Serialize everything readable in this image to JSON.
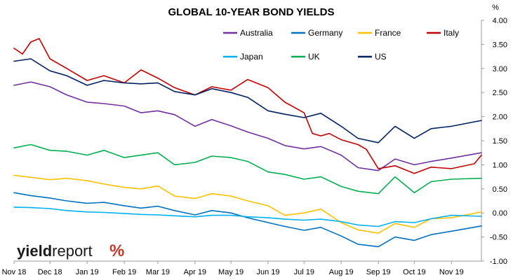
{
  "chart_data": {
    "type": "line",
    "title": "GLOBAL 10-YEAR BOND YIELDS",
    "unit": "%",
    "ylim": [
      -1.0,
      4.0
    ],
    "yticks": [
      -1.0,
      -0.5,
      0.0,
      0.5,
      1.0,
      1.5,
      2.0,
      2.5,
      3.0,
      3.5,
      4.0
    ],
    "ytick_labels": [
      "-1.00",
      "-0.50",
      "0.00",
      "0.50",
      "1.00",
      "1.50",
      "2.00",
      "2.50",
      "3.00",
      "3.50",
      "4.00"
    ],
    "xlim": [
      "2018-11-01",
      "2019-11-26"
    ],
    "xticks": [
      "2018-11-01",
      "2018-12-01",
      "2019-01-01",
      "2019-02-01",
      "2019-03-01",
      "2019-04-01",
      "2019-05-01",
      "2019-06-01",
      "2019-07-01",
      "2019-08-01",
      "2019-09-01",
      "2019-10-01",
      "2019-11-01"
    ],
    "xtick_labels": [
      "Nov 18",
      "Dec 18",
      "Jan 19",
      "Feb 19",
      "Mar 19",
      "Apr 19",
      "May 19",
      "Jun 19",
      "Jul 19",
      "Aug 19",
      "Sep 19",
      "Oct 19",
      "Nov 19"
    ],
    "grid": false,
    "legend": "top",
    "series": [
      {
        "name": "Australia",
        "color": "#7030a0",
        "points": [
          [
            "2018-11-01",
            2.65
          ],
          [
            "2018-11-15",
            2.72
          ],
          [
            "2018-12-01",
            2.62
          ],
          [
            "2018-12-15",
            2.45
          ],
          [
            "2019-01-01",
            2.3
          ],
          [
            "2019-01-15",
            2.27
          ],
          [
            "2019-02-01",
            2.22
          ],
          [
            "2019-02-15",
            2.08
          ],
          [
            "2019-03-01",
            2.12
          ],
          [
            "2019-03-15",
            2.04
          ],
          [
            "2019-04-01",
            1.8
          ],
          [
            "2019-04-15",
            1.94
          ],
          [
            "2019-05-01",
            1.81
          ],
          [
            "2019-05-15",
            1.68
          ],
          [
            "2019-06-01",
            1.55
          ],
          [
            "2019-06-15",
            1.4
          ],
          [
            "2019-07-01",
            1.33
          ],
          [
            "2019-07-15",
            1.38
          ],
          [
            "2019-08-01",
            1.2
          ],
          [
            "2019-08-15",
            0.94
          ],
          [
            "2019-09-01",
            0.88
          ],
          [
            "2019-09-15",
            1.12
          ],
          [
            "2019-10-01",
            1.0
          ],
          [
            "2019-10-15",
            1.07
          ],
          [
            "2019-11-01",
            1.14
          ],
          [
            "2019-11-26",
            1.25
          ]
        ]
      },
      {
        "name": "Germany",
        "color": "#0070c0",
        "points": [
          [
            "2018-11-01",
            0.42
          ],
          [
            "2018-11-15",
            0.36
          ],
          [
            "2018-12-01",
            0.31
          ],
          [
            "2018-12-15",
            0.25
          ],
          [
            "2019-01-01",
            0.2
          ],
          [
            "2019-01-15",
            0.22
          ],
          [
            "2019-02-01",
            0.15
          ],
          [
            "2019-02-15",
            0.1
          ],
          [
            "2019-03-01",
            0.14
          ],
          [
            "2019-03-15",
            0.05
          ],
          [
            "2019-04-01",
            -0.04
          ],
          [
            "2019-04-15",
            0.05
          ],
          [
            "2019-05-01",
            0.0
          ],
          [
            "2019-05-15",
            -0.1
          ],
          [
            "2019-06-01",
            -0.2
          ],
          [
            "2019-06-15",
            -0.28
          ],
          [
            "2019-07-01",
            -0.36
          ],
          [
            "2019-07-15",
            -0.3
          ],
          [
            "2019-08-01",
            -0.48
          ],
          [
            "2019-08-15",
            -0.65
          ],
          [
            "2019-09-01",
            -0.7
          ],
          [
            "2019-09-15",
            -0.5
          ],
          [
            "2019-10-01",
            -0.57
          ],
          [
            "2019-10-15",
            -0.45
          ],
          [
            "2019-11-01",
            -0.38
          ],
          [
            "2019-11-26",
            -0.27
          ]
        ]
      },
      {
        "name": "France",
        "color": "#ffc000",
        "points": [
          [
            "2018-11-01",
            0.78
          ],
          [
            "2018-11-15",
            0.74
          ],
          [
            "2018-12-01",
            0.69
          ],
          [
            "2018-12-15",
            0.72
          ],
          [
            "2019-01-01",
            0.67
          ],
          [
            "2019-01-15",
            0.6
          ],
          [
            "2019-02-01",
            0.53
          ],
          [
            "2019-02-15",
            0.5
          ],
          [
            "2019-03-01",
            0.56
          ],
          [
            "2019-03-15",
            0.35
          ],
          [
            "2019-04-01",
            0.3
          ],
          [
            "2019-04-15",
            0.4
          ],
          [
            "2019-05-01",
            0.35
          ],
          [
            "2019-05-15",
            0.25
          ],
          [
            "2019-06-01",
            0.15
          ],
          [
            "2019-06-15",
            -0.05
          ],
          [
            "2019-07-01",
            0.0
          ],
          [
            "2019-07-15",
            0.08
          ],
          [
            "2019-08-01",
            -0.2
          ],
          [
            "2019-08-15",
            -0.35
          ],
          [
            "2019-09-01",
            -0.42
          ],
          [
            "2019-09-15",
            -0.22
          ],
          [
            "2019-10-01",
            -0.3
          ],
          [
            "2019-10-15",
            -0.12
          ],
          [
            "2019-11-01",
            -0.1
          ],
          [
            "2019-11-26",
            0.02
          ]
        ]
      },
      {
        "name": "Italy",
        "color": "#c00000",
        "points": [
          [
            "2018-11-01",
            3.42
          ],
          [
            "2018-11-08",
            3.3
          ],
          [
            "2018-11-15",
            3.55
          ],
          [
            "2018-11-22",
            3.62
          ],
          [
            "2018-12-01",
            3.2
          ],
          [
            "2018-12-15",
            3.0
          ],
          [
            "2019-01-01",
            2.75
          ],
          [
            "2019-01-15",
            2.85
          ],
          [
            "2019-02-01",
            2.7
          ],
          [
            "2019-02-15",
            2.97
          ],
          [
            "2019-03-01",
            2.8
          ],
          [
            "2019-03-15",
            2.6
          ],
          [
            "2019-04-01",
            2.45
          ],
          [
            "2019-04-15",
            2.62
          ],
          [
            "2019-05-01",
            2.55
          ],
          [
            "2019-05-15",
            2.77
          ],
          [
            "2019-06-01",
            2.6
          ],
          [
            "2019-06-15",
            2.3
          ],
          [
            "2019-07-01",
            2.08
          ],
          [
            "2019-07-08",
            1.65
          ],
          [
            "2019-07-15",
            1.6
          ],
          [
            "2019-07-22",
            1.65
          ],
          [
            "2019-08-01",
            1.52
          ],
          [
            "2019-08-15",
            1.42
          ],
          [
            "2019-08-22",
            1.32
          ],
          [
            "2019-09-01",
            0.92
          ],
          [
            "2019-09-15",
            0.98
          ],
          [
            "2019-10-01",
            0.82
          ],
          [
            "2019-10-15",
            0.95
          ],
          [
            "2019-11-01",
            0.92
          ],
          [
            "2019-11-20",
            1.02
          ],
          [
            "2019-11-26",
            1.2
          ]
        ]
      },
      {
        "name": "Japan",
        "color": "#00b0f0",
        "points": [
          [
            "2018-11-01",
            0.12
          ],
          [
            "2018-11-15",
            0.11
          ],
          [
            "2018-12-01",
            0.09
          ],
          [
            "2018-12-15",
            0.05
          ],
          [
            "2019-01-01",
            0.02
          ],
          [
            "2019-01-15",
            0.01
          ],
          [
            "2019-02-01",
            -0.01
          ],
          [
            "2019-02-15",
            -0.03
          ],
          [
            "2019-03-01",
            -0.04
          ],
          [
            "2019-03-15",
            -0.06
          ],
          [
            "2019-04-01",
            -0.08
          ],
          [
            "2019-04-15",
            -0.05
          ],
          [
            "2019-05-01",
            -0.05
          ],
          [
            "2019-05-15",
            -0.08
          ],
          [
            "2019-06-01",
            -0.1
          ],
          [
            "2019-06-15",
            -0.13
          ],
          [
            "2019-07-01",
            -0.15
          ],
          [
            "2019-07-15",
            -0.13
          ],
          [
            "2019-08-01",
            -0.18
          ],
          [
            "2019-08-15",
            -0.25
          ],
          [
            "2019-09-01",
            -0.28
          ],
          [
            "2019-09-15",
            -0.18
          ],
          [
            "2019-10-01",
            -0.2
          ],
          [
            "2019-10-15",
            -0.12
          ],
          [
            "2019-11-01",
            -0.05
          ],
          [
            "2019-11-26",
            -0.07
          ]
        ]
      },
      {
        "name": "UK",
        "color": "#00b050",
        "points": [
          [
            "2018-11-01",
            1.35
          ],
          [
            "2018-11-15",
            1.42
          ],
          [
            "2018-12-01",
            1.3
          ],
          [
            "2018-12-15",
            1.28
          ],
          [
            "2019-01-01",
            1.2
          ],
          [
            "2019-01-15",
            1.3
          ],
          [
            "2019-02-01",
            1.15
          ],
          [
            "2019-02-15",
            1.2
          ],
          [
            "2019-03-01",
            1.25
          ],
          [
            "2019-03-15",
            1.0
          ],
          [
            "2019-04-01",
            1.05
          ],
          [
            "2019-04-15",
            1.18
          ],
          [
            "2019-05-01",
            1.15
          ],
          [
            "2019-05-15",
            1.07
          ],
          [
            "2019-06-01",
            0.85
          ],
          [
            "2019-06-15",
            0.8
          ],
          [
            "2019-07-01",
            0.7
          ],
          [
            "2019-07-15",
            0.75
          ],
          [
            "2019-08-01",
            0.55
          ],
          [
            "2019-08-15",
            0.45
          ],
          [
            "2019-09-01",
            0.4
          ],
          [
            "2019-09-15",
            0.75
          ],
          [
            "2019-10-01",
            0.42
          ],
          [
            "2019-10-15",
            0.65
          ],
          [
            "2019-11-01",
            0.7
          ],
          [
            "2019-11-26",
            0.72
          ]
        ]
      },
      {
        "name": "US",
        "color": "#002060",
        "points": [
          [
            "2018-11-01",
            3.15
          ],
          [
            "2018-11-15",
            3.2
          ],
          [
            "2018-12-01",
            2.95
          ],
          [
            "2018-12-15",
            2.85
          ],
          [
            "2019-01-01",
            2.65
          ],
          [
            "2019-01-15",
            2.75
          ],
          [
            "2019-02-01",
            2.7
          ],
          [
            "2019-02-15",
            2.68
          ],
          [
            "2019-03-01",
            2.7
          ],
          [
            "2019-03-15",
            2.52
          ],
          [
            "2019-04-01",
            2.45
          ],
          [
            "2019-04-15",
            2.58
          ],
          [
            "2019-05-01",
            2.5
          ],
          [
            "2019-05-15",
            2.4
          ],
          [
            "2019-06-01",
            2.12
          ],
          [
            "2019-06-15",
            2.05
          ],
          [
            "2019-07-01",
            1.98
          ],
          [
            "2019-07-15",
            2.07
          ],
          [
            "2019-08-01",
            1.8
          ],
          [
            "2019-08-15",
            1.55
          ],
          [
            "2019-09-01",
            1.46
          ],
          [
            "2019-09-15",
            1.8
          ],
          [
            "2019-10-01",
            1.55
          ],
          [
            "2019-10-15",
            1.75
          ],
          [
            "2019-11-01",
            1.8
          ],
          [
            "2019-11-26",
            1.92
          ]
        ]
      }
    ]
  },
  "logo": {
    "text_bold": "yield",
    "text_regular": "report",
    "symbol": "%"
  }
}
